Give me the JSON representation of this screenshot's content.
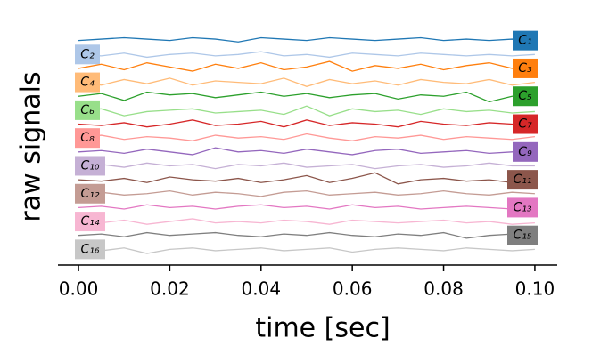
{
  "chart_data": {
    "type": "line",
    "xlabel": "time [sec]",
    "ylabel": "raw signals",
    "x": [
      0,
      0.005,
      0.01,
      0.015,
      0.02,
      0.025,
      0.03,
      0.035,
      0.04,
      0.045,
      0.05,
      0.055,
      0.06,
      0.065,
      0.07,
      0.075,
      0.08,
      0.085,
      0.09,
      0.095,
      0.1
    ],
    "xlim": [
      -0.0045,
      0.1049
    ],
    "xticks": [
      {
        "value": 0,
        "label": "0.00"
      },
      {
        "value": 0.02,
        "label": "0.02"
      },
      {
        "value": 0.04,
        "label": "0.04"
      },
      {
        "value": 0.06,
        "label": "0.06"
      },
      {
        "value": 0.08,
        "label": "0.08"
      },
      {
        "value": 0.1,
        "label": "0.10"
      }
    ],
    "ylim": [
      -1,
      16
    ],
    "series": [
      {
        "name": "C₁",
        "color": "#1f77b4",
        "values": [
          15.0,
          15.1,
          15.2,
          15.1,
          15.0,
          15.2,
          15.1,
          14.9,
          15.2,
          15.1,
          15.0,
          15.2,
          15.1,
          15.0,
          15.1,
          15.2,
          15.0,
          15.1,
          15.0,
          15.1,
          15.0
        ]
      },
      {
        "name": "C₂",
        "color": "#aec7e8",
        "values": [
          14.0,
          13.9,
          14.1,
          13.8,
          14.0,
          14.1,
          13.9,
          14.0,
          14.2,
          13.9,
          14.0,
          13.8,
          14.1,
          14.0,
          13.9,
          14.1,
          14.0,
          13.9,
          14.0,
          13.9,
          14.0
        ]
      },
      {
        "name": "C₃",
        "color": "#ff7f0e",
        "values": [
          13.0,
          13.3,
          12.9,
          13.4,
          13.1,
          12.8,
          13.3,
          13.0,
          13.4,
          12.9,
          13.1,
          13.5,
          12.8,
          13.2,
          13.0,
          13.3,
          12.9,
          13.2,
          13.4,
          13.0,
          13.2
        ]
      },
      {
        "name": "C₄",
        "color": "#ffbb78",
        "values": [
          12.0,
          11.8,
          12.2,
          11.9,
          12.3,
          11.8,
          12.1,
          12.0,
          11.9,
          12.3,
          11.7,
          12.2,
          11.9,
          12.1,
          11.8,
          12.2,
          12.0,
          11.9,
          12.2,
          11.8,
          12.0
        ]
      },
      {
        "name": "C₅",
        "color": "#2ca02c",
        "values": [
          11.0,
          11.2,
          10.7,
          11.3,
          11.1,
          11.2,
          10.9,
          11.1,
          11.3,
          11.0,
          11.2,
          10.9,
          11.1,
          11.2,
          10.8,
          11.1,
          11.0,
          11.3,
          10.6,
          11.0,
          11.1
        ]
      },
      {
        "name": "C₆",
        "color": "#98df8a",
        "values": [
          10.0,
          10.1,
          9.6,
          9.9,
          10.0,
          10.1,
          9.8,
          9.9,
          10.0,
          9.7,
          10.3,
          9.6,
          10.1,
          9.9,
          10.0,
          9.7,
          10.1,
          9.9,
          10.0,
          9.8,
          9.9
        ]
      },
      {
        "name": "C₇",
        "color": "#d62728",
        "values": [
          9.0,
          8.9,
          9.1,
          8.8,
          9.0,
          9.3,
          8.9,
          9.0,
          9.2,
          8.8,
          9.3,
          8.9,
          9.1,
          9.0,
          8.8,
          9.2,
          9.0,
          8.9,
          9.1,
          9.0,
          8.9
        ]
      },
      {
        "name": "C₈",
        "color": "#ff9896",
        "values": [
          8.0,
          8.2,
          7.9,
          8.1,
          8.0,
          7.8,
          8.2,
          8.0,
          8.1,
          7.9,
          8.3,
          8.0,
          7.8,
          8.1,
          8.0,
          8.2,
          7.9,
          8.1,
          8.0,
          7.9,
          8.1
        ]
      },
      {
        "name": "C₉",
        "color": "#9467bd",
        "values": [
          7.0,
          7.1,
          6.9,
          7.2,
          7.0,
          6.8,
          7.3,
          7.0,
          7.1,
          6.9,
          7.2,
          7.0,
          6.8,
          7.1,
          7.2,
          6.9,
          7.0,
          7.1,
          6.9,
          7.0,
          7.1
        ]
      },
      {
        "name": "C₁₀",
        "color": "#c5b0d5",
        "values": [
          6.0,
          6.1,
          5.9,
          6.2,
          6.0,
          6.1,
          5.8,
          6.1,
          6.0,
          6.2,
          5.9,
          6.0,
          6.1,
          5.8,
          6.0,
          6.1,
          5.9,
          6.0,
          6.2,
          6.0,
          6.0
        ]
      },
      {
        "name": "C₁₁",
        "color": "#8c564b",
        "values": [
          5.0,
          4.9,
          5.1,
          4.8,
          5.2,
          5.0,
          4.9,
          5.1,
          4.8,
          5.0,
          5.3,
          4.8,
          5.1,
          5.5,
          4.7,
          5.0,
          5.1,
          4.9,
          5.0,
          4.8,
          5.0
        ]
      },
      {
        "name": "C₁₂",
        "color": "#c49c94",
        "values": [
          4.0,
          4.1,
          3.9,
          4.0,
          4.2,
          3.9,
          4.1,
          4.0,
          3.8,
          4.1,
          4.2,
          3.9,
          4.0,
          4.1,
          3.9,
          4.0,
          4.2,
          4.0,
          3.9,
          4.1,
          4.0
        ]
      },
      {
        "name": "C₁₃",
        "color": "#e377c2",
        "values": [
          3.0,
          3.1,
          2.9,
          3.2,
          3.0,
          3.1,
          2.9,
          3.1,
          3.2,
          3.0,
          3.1,
          2.9,
          3.2,
          3.0,
          3.1,
          2.9,
          3.0,
          3.1,
          3.0,
          2.9,
          3.1
        ]
      },
      {
        "name": "C₁₄",
        "color": "#f7b6d2",
        "values": [
          2.0,
          1.9,
          2.1,
          1.8,
          2.0,
          2.2,
          1.9,
          2.0,
          1.9,
          2.1,
          2.0,
          1.8,
          2.1,
          2.0,
          1.9,
          2.0,
          2.1,
          1.9,
          2.0,
          1.8,
          1.9
        ]
      },
      {
        "name": "C₁₅",
        "color": "#7f7f7f",
        "values": [
          1.0,
          1.1,
          0.9,
          1.2,
          1.0,
          1.1,
          1.2,
          1.0,
          0.9,
          1.1,
          1.0,
          1.2,
          1.0,
          0.9,
          1.1,
          1.0,
          1.2,
          0.8,
          1.0,
          1.1,
          1.0
        ]
      },
      {
        "name": "C₁₆",
        "color": "#c7c7c7",
        "values": [
          0.0,
          -0.1,
          0.1,
          -0.3,
          0.0,
          0.1,
          -0.1,
          0.0,
          0.1,
          -0.1,
          0.0,
          0.1,
          -0.2,
          0.0,
          0.1,
          0.0,
          -0.1,
          0.1,
          0.0,
          -0.1,
          0.0
        ]
      }
    ]
  }
}
